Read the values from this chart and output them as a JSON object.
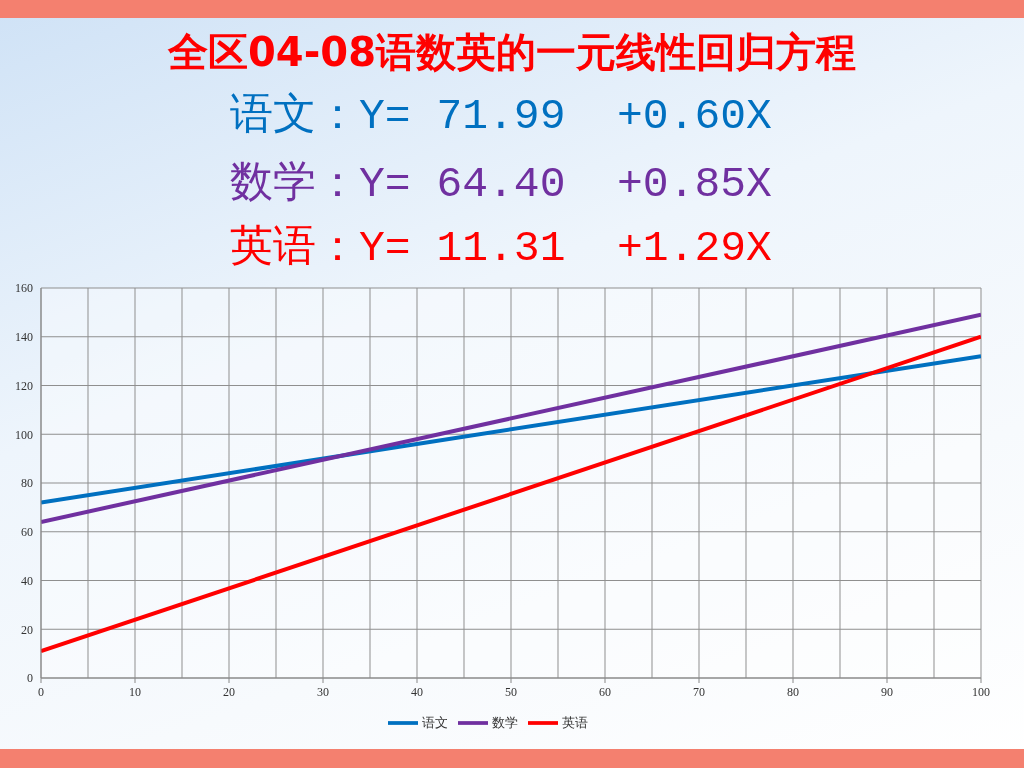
{
  "chart_data": {
    "type": "line",
    "title": "全区04-08语数英的一元线性回归方程",
    "annotations": [
      "语文：Y= 71.99  +0.60X",
      "数学：Y= 64.40  +0.85X",
      "英语：Y= 11.31  +1.29X"
    ],
    "x": [
      0,
      100
    ],
    "series": [
      {
        "name": "语文",
        "color": "#0070c0",
        "values": [
          72,
          132
        ]
      },
      {
        "name": "数学",
        "color": "#7030a0",
        "values": [
          64,
          149
        ]
      },
      {
        "name": "英语",
        "color": "#ff0000",
        "values": [
          11,
          140
        ]
      }
    ],
    "xlim": [
      0,
      100
    ],
    "xticks": [
      0,
      {
        "value": 5,
        "label": null
      },
      10,
      {
        "value": 15,
        "label": null
      },
      20,
      {
        "value": 25,
        "label": null
      },
      30,
      {
        "value": 35,
        "label": null
      },
      40,
      {
        "value": 45,
        "label": null
      },
      50,
      {
        "value": 55,
        "label": null
      },
      60,
      {
        "value": 65,
        "label": null
      },
      70,
      {
        "value": 75,
        "label": null
      },
      80,
      {
        "value": 85,
        "label": null
      },
      90,
      {
        "value": 95,
        "label": null
      },
      100
    ],
    "ylim": [
      0,
      160
    ],
    "yticks": [
      0,
      20,
      40,
      60,
      80,
      100,
      120,
      140,
      160
    ],
    "grid": true,
    "legend": "bottom"
  }
}
